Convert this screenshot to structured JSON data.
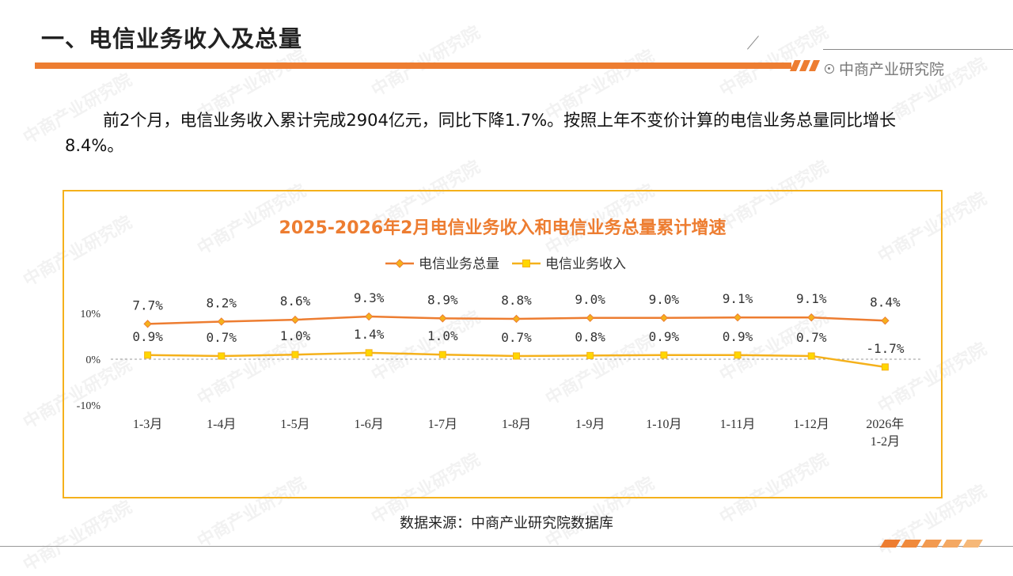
{
  "header": {
    "title": "一、电信业务收入及总量",
    "brand": "中商产业研究院"
  },
  "summary": {
    "text": "前2个月，电信业务收入累计完成2904亿元，同比下降1.7%。按照上年不变价计算的电信业务总量同比增长8.4%。"
  },
  "footer": {
    "source": "数据来源：中商产业研究院数据库"
  },
  "watermark": {
    "text": "中商产业研究院"
  },
  "colors": {
    "accent": "#ed7d31",
    "series_total": "#ed7d31",
    "series_total_marker": "#f5b11b",
    "series_revenue": "#f5b11b",
    "series_revenue_marker": "#ffd700",
    "frame": "#f5b11b"
  },
  "chart_data": {
    "type": "line",
    "title": "2025-2026年2月电信业务收入和电信业务总量累计增速",
    "categories": [
      "1-3月",
      "1-4月",
      "1-5月",
      "1-6月",
      "1-7月",
      "1-8月",
      "1-9月",
      "1-10月",
      "1-11月",
      "1-12月",
      "2026年\n1-2月"
    ],
    "series": [
      {
        "name": "电信业务总量",
        "values": [
          7.7,
          8.2,
          8.6,
          9.3,
          8.9,
          8.8,
          9.0,
          9.0,
          9.1,
          9.1,
          8.4
        ],
        "labels": [
          "7.7%",
          "8.2%",
          "8.6%",
          "9.3%",
          "8.9%",
          "8.8%",
          "9.0%",
          "9.0%",
          "9.1%",
          "9.1%",
          "8.4%"
        ]
      },
      {
        "name": "电信业务收入",
        "values": [
          0.9,
          0.7,
          1.0,
          1.4,
          1.0,
          0.7,
          0.8,
          0.9,
          0.9,
          0.7,
          -1.7
        ],
        "labels": [
          "0.9%",
          "0.7%",
          "1.0%",
          "1.4%",
          "1.0%",
          "0.7%",
          "0.8%",
          "0.9%",
          "0.9%",
          "0.7%",
          "-1.7%"
        ]
      }
    ],
    "ylim": [
      -10,
      10
    ],
    "yticks": [
      10,
      0,
      -10
    ],
    "ytick_labels": [
      "10%",
      "0%",
      "-10%"
    ],
    "xlabel": "",
    "ylabel": "",
    "legend": "top-center",
    "grid": false
  }
}
